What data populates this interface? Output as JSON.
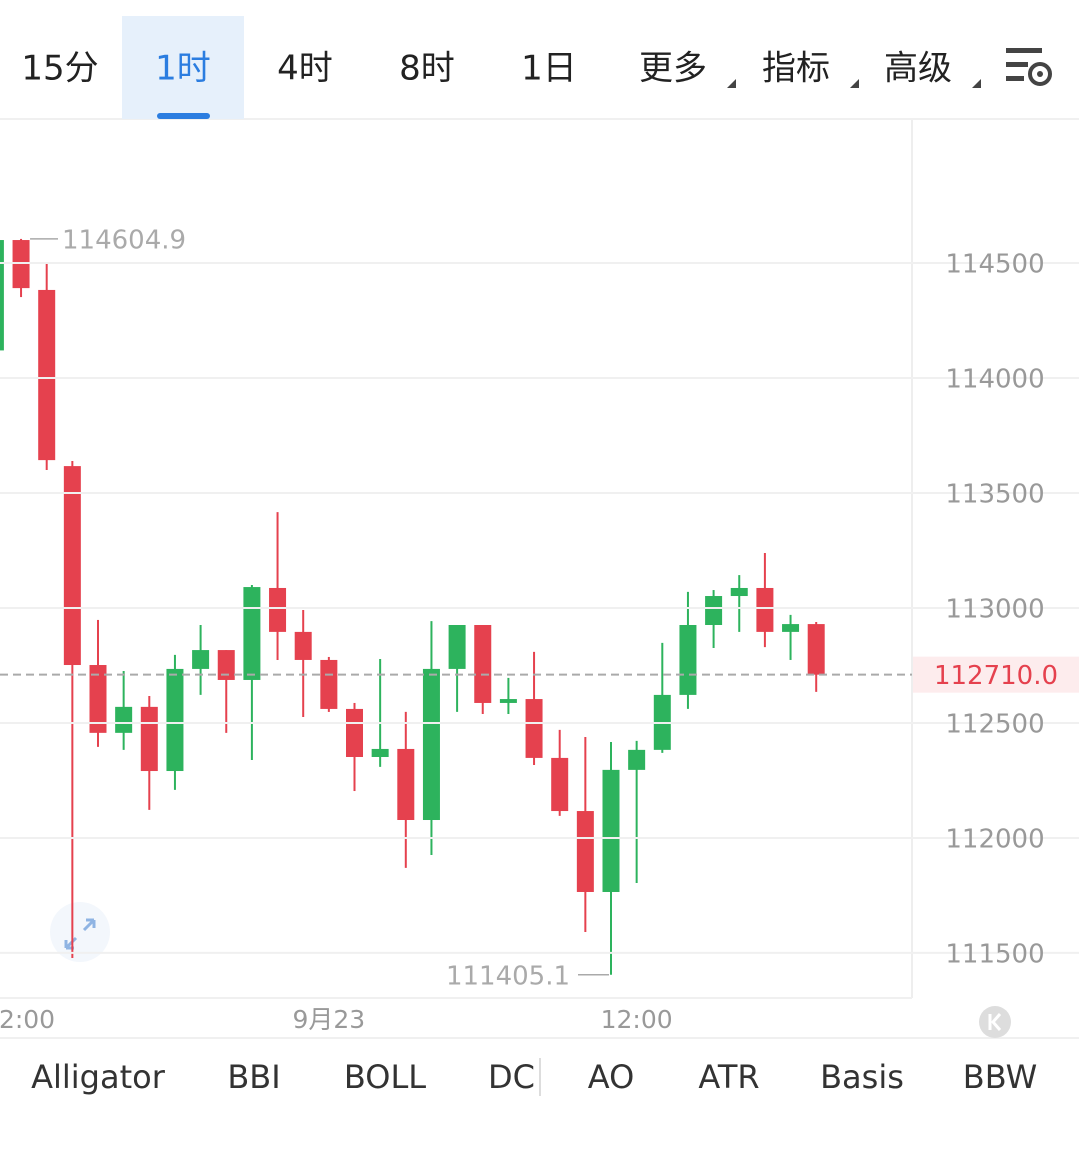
{
  "tabs": [
    {
      "label": "15分",
      "dropdown": false
    },
    {
      "label": "1时",
      "dropdown": false
    },
    {
      "label": "4时",
      "dropdown": false
    },
    {
      "label": "8时",
      "dropdown": false
    },
    {
      "label": "1日",
      "dropdown": false
    },
    {
      "label": "更多",
      "dropdown": true
    },
    {
      "label": "指标",
      "dropdown": true
    },
    {
      "label": "高级",
      "dropdown": true
    }
  ],
  "active_tab": 1,
  "chart_data": {
    "type": "candlestick",
    "categories": [
      null,
      "2:00",
      null,
      null,
      null,
      null,
      null,
      null,
      null,
      null,
      null,
      null,
      null,
      "9月23",
      null,
      null,
      null,
      null,
      null,
      null,
      null,
      null,
      null,
      null,
      null,
      "12:00",
      null,
      null,
      null,
      null,
      null,
      null,
      null
    ],
    "open": [
      114120,
      114600,
      114383,
      113617,
      112752,
      112457,
      112570,
      112291,
      112735,
      112817,
      112687,
      113087,
      112896,
      112774,
      112561,
      112352,
      112387,
      112078,
      112735,
      112926,
      112587,
      112604,
      112348,
      112117,
      111765,
      112296,
      112383,
      112622,
      112926,
      113052,
      113087,
      112896,
      112930
    ],
    "high": [
      114600,
      114604.9,
      114500,
      113639,
      112948,
      112726,
      112617,
      112796,
      112926,
      112817,
      113100,
      113417,
      112991,
      112787,
      112587,
      112778,
      112548,
      112943,
      112926,
      112926,
      112696,
      112809,
      112470,
      112439,
      112417,
      112422,
      112848,
      113070,
      113078,
      113143,
      113239,
      112970,
      112939
    ],
    "low": [
      114100,
      114352,
      113600,
      111478,
      112396,
      112383,
      112122,
      112209,
      112622,
      112457,
      112339,
      112774,
      112526,
      112548,
      112204,
      112309,
      111870,
      111926,
      112548,
      112539,
      112539,
      112317,
      112096,
      111591,
      111405.1,
      111804,
      112370,
      112561,
      112826,
      112896,
      112830,
      112774,
      112635
    ],
    "close": [
      114600,
      114391,
      113643,
      112752,
      112457,
      112570,
      112291,
      112735,
      112817,
      112687,
      113091,
      112896,
      112774,
      112561,
      112352,
      112387,
      112078,
      112735,
      112926,
      112587,
      112604,
      112348,
      112117,
      111765,
      112296,
      112383,
      112622,
      112926,
      113052,
      113087,
      112896,
      112930,
      112710
    ],
    "up_color": "#2db35d",
    "down_color": "#e5414e",
    "ylim": [
      111304,
      115122
    ],
    "yticks": [
      111500,
      112000,
      112500,
      113000,
      113500,
      114000,
      114500
    ],
    "grid": true,
    "high_label_index": 1,
    "low_label_index": 24,
    "last_price_label": "112710.0"
  },
  "indicators": [
    "Alligator",
    "BBI",
    "BOLL",
    "DC",
    "AO",
    "ATR",
    "Basis",
    "BBW"
  ]
}
